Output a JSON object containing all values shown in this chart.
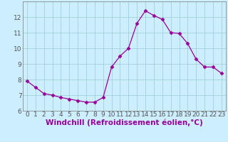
{
  "x": [
    0,
    1,
    2,
    3,
    4,
    5,
    6,
    7,
    8,
    9,
    10,
    11,
    12,
    13,
    14,
    15,
    16,
    17,
    18,
    19,
    20,
    21,
    22,
    23
  ],
  "y": [
    7.9,
    7.5,
    7.1,
    7.0,
    6.85,
    6.75,
    6.65,
    6.55,
    6.55,
    6.85,
    8.8,
    9.5,
    10.0,
    11.6,
    12.4,
    12.1,
    11.85,
    11.0,
    10.95,
    10.3,
    9.3,
    8.8,
    8.8,
    8.4
  ],
  "line_color": "#990099",
  "marker": "D",
  "marker_size": 2.5,
  "bg_color": "#cceeff",
  "grid_color": "#99cccc",
  "xlabel": "Windchill (Refroidissement éolien,°C)",
  "xlim_min": -0.5,
  "xlim_max": 23.5,
  "ylim_min": 6,
  "ylim_max": 13,
  "yticks": [
    6,
    7,
    8,
    9,
    10,
    11,
    12
  ],
  "xticks": [
    0,
    1,
    2,
    3,
    4,
    5,
    6,
    7,
    8,
    9,
    10,
    11,
    12,
    13,
    14,
    15,
    16,
    17,
    18,
    19,
    20,
    21,
    22,
    23
  ],
  "xlabel_fontsize": 7.5,
  "tick_fontsize": 6.5,
  "spine_color": "#777777",
  "tick_color": "#555555"
}
